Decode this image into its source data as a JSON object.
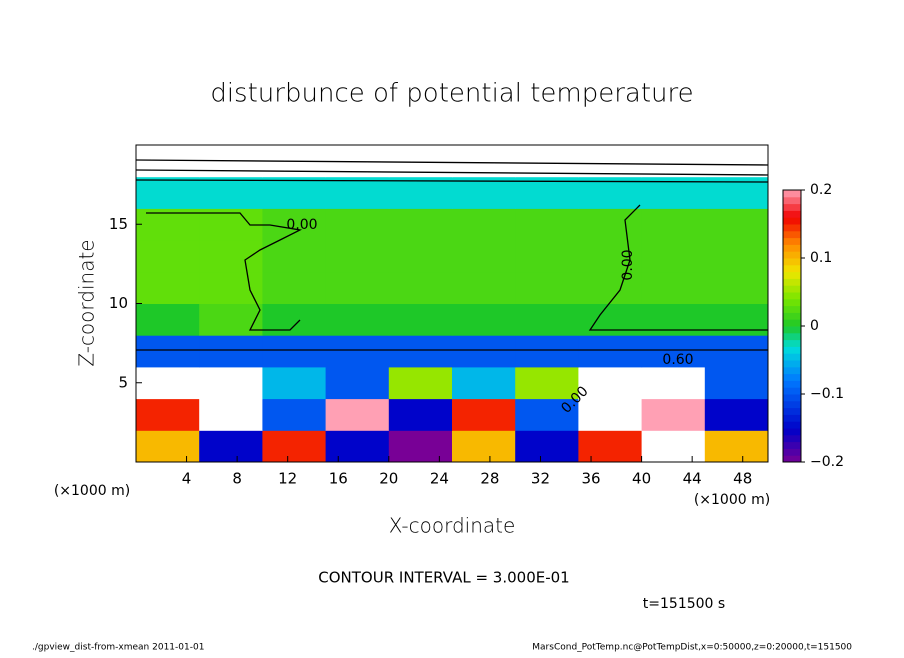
{
  "chart_data": {
    "type": "heatmap",
    "title": "disturbunce of potential temperature",
    "xlabel": "X-coordinate",
    "ylabel": "Z-coordinate",
    "xunit": "(×1000 m)",
    "yunit": "(×1000 m)",
    "xlim": [
      0,
      50
    ],
    "xticks": [
      4,
      8,
      12,
      16,
      20,
      24,
      28,
      32,
      36,
      40,
      44,
      48
    ],
    "ylim": [
      0,
      20
    ],
    "yticks": [
      5,
      10,
      15
    ],
    "x": [
      2.5,
      7.5,
      12.5,
      17.5,
      22.5,
      27.5,
      32.5,
      37.5,
      42.5,
      47.5
    ],
    "y": [
      1,
      3,
      5,
      7,
      9,
      11,
      13,
      15,
      17,
      19
    ],
    "z": [
      [
        0.1,
        -0.15,
        0.15,
        -0.15,
        -0.2,
        0.1,
        -0.15,
        0.15,
        0.3,
        0.1
      ],
      [
        0.15,
        0.3,
        -0.1,
        0.2,
        -0.15,
        0.15,
        -0.1,
        0.3,
        0.2,
        -0.15
      ],
      [
        -0.25,
        -0.3,
        -0.05,
        -0.1,
        0.05,
        -0.05,
        0.05,
        -0.3,
        -0.25,
        -0.1
      ],
      [
        -0.1,
        -0.1,
        -0.1,
        -0.1,
        -0.1,
        -0.1,
        -0.1,
        -0.1,
        -0.1,
        -0.1
      ],
      [
        0,
        0.02,
        0,
        0,
        0,
        0,
        0,
        0,
        0,
        0
      ],
      [
        0.03,
        0.03,
        0.02,
        0.02,
        0.02,
        0.02,
        0.02,
        0.02,
        0.02,
        0.02
      ],
      [
        0.03,
        0.03,
        0.02,
        0.02,
        0.02,
        0.02,
        0.02,
        0.02,
        0.02,
        0.02
      ],
      [
        0.03,
        0.03,
        0.02,
        0.02,
        0.02,
        0.02,
        0.02,
        0.02,
        0.02,
        0.02
      ],
      [
        -0.03,
        -0.03,
        -0.03,
        -0.03,
        -0.03,
        -0.03,
        -0.03,
        -0.03,
        -0.03,
        -0.03
      ],
      [
        0.3,
        0.3,
        0.3,
        0.3,
        0.3,
        0.3,
        0.3,
        0.3,
        0.3,
        0.3
      ]
    ],
    "clim": [
      -0.2,
      0.2
    ],
    "cticks": [
      {
        "value": -0.2,
        "label": "−0.2"
      },
      {
        "value": -0.1,
        "label": "−0.1"
      },
      0,
      0.1,
      0.2
    ],
    "contour_labels": [
      "0.00",
      "0.00",
      "0.60",
      "0.00"
    ],
    "annotations": [
      "CONTOUR INTERVAL = 3.000E-01",
      "t=151500 s"
    ],
    "footer_left": "./gpview_dist-from-xmean  2011-01-01",
    "footer_right": "MarsCond_PotTemp.nc@PotTempDist,x=0:50000,z=0:20000,t=151500"
  }
}
